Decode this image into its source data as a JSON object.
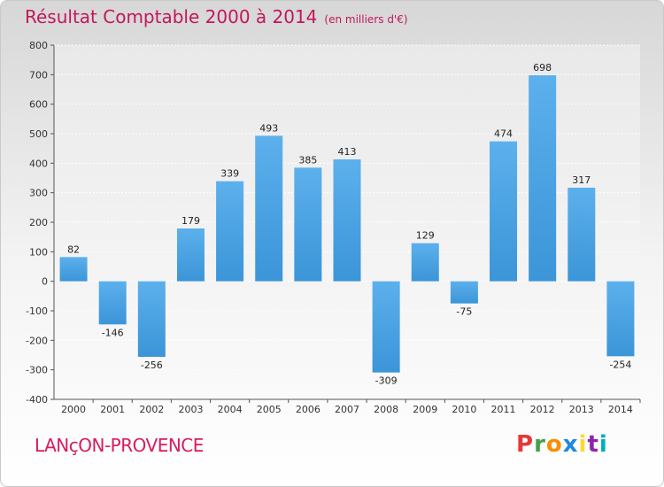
{
  "header": {
    "title": "Résultat Comptable 2000 à 2014",
    "subtitle": "(en milliers d'€)"
  },
  "footer": {
    "city": "LANçON-PROVENCE",
    "logo_letters": [
      "P",
      "r",
      "o",
      "x",
      "i",
      "t",
      "i"
    ],
    "logo_colors": [
      "#e53935",
      "#43a047",
      "#fb8c00",
      "#1e88e5",
      "#fdd835",
      "#8e24aa",
      "#00acc1"
    ]
  },
  "chart_data": {
    "type": "bar",
    "title": "Résultat Comptable 2000 à 2014",
    "xlabel": "",
    "ylabel": "",
    "categories": [
      "2000",
      "2001",
      "2002",
      "2003",
      "2004",
      "2005",
      "2006",
      "2007",
      "2008",
      "2009",
      "2010",
      "2011",
      "2012",
      "2013",
      "2014"
    ],
    "values": [
      82,
      -146,
      -256,
      179,
      339,
      493,
      385,
      413,
      -309,
      129,
      -75,
      474,
      698,
      317,
      -254
    ],
    "ylim": [
      -400,
      800
    ],
    "yticks": [
      800,
      700,
      600,
      500,
      400,
      300,
      200,
      100,
      0,
      -100,
      -200,
      -300,
      -400
    ],
    "bar_color": "#3b95d8",
    "grid": true
  }
}
